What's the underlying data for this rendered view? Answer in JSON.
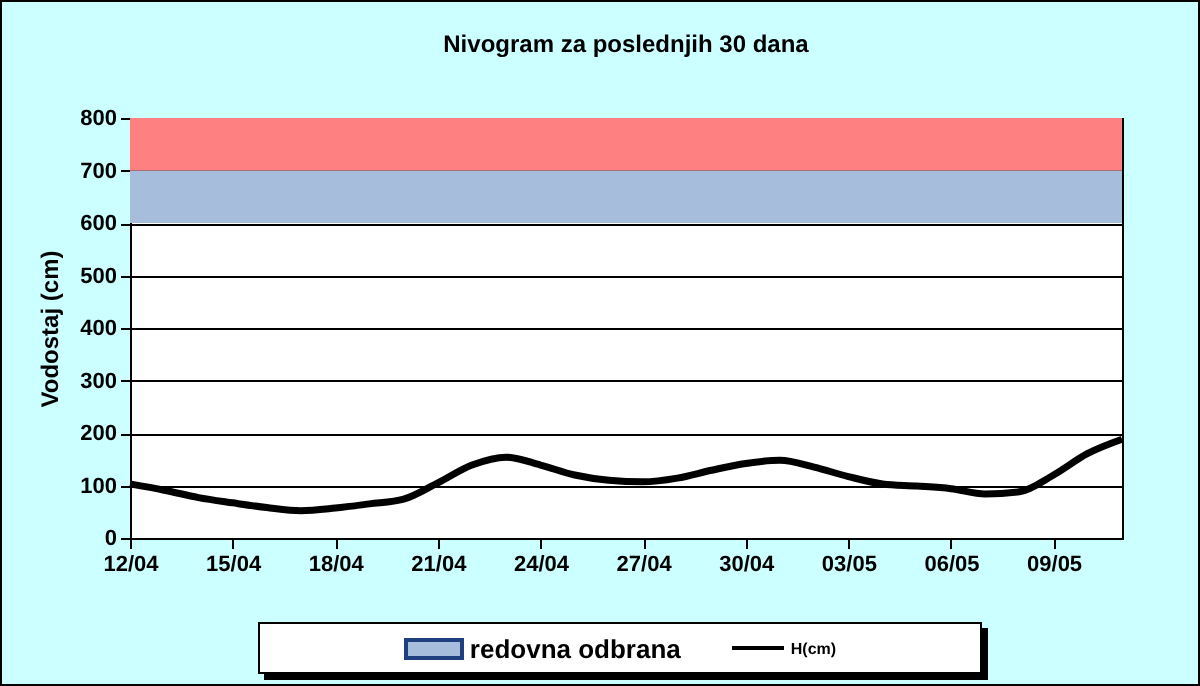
{
  "chart_data": {
    "type": "line",
    "title": "Nivogram za poslednjih 30 dana",
    "ylabel": "Vodostaj (cm)",
    "x": [
      "--04-12",
      "--04-13",
      "--04-14",
      "--04-15",
      "--04-16",
      "--04-17",
      "--04-18",
      "--04-19",
      "--04-20",
      "--04-21",
      "--04-22",
      "--04-23",
      "--04-24",
      "--04-25",
      "--04-26",
      "--04-27",
      "--04-28",
      "--04-29",
      "--04-30",
      "--05-01",
      "--05-02",
      "--05-03",
      "--05-04",
      "--05-05",
      "--05-06",
      "--05-07",
      "--05-08",
      "--05-09",
      "--05-10",
      "--05-11"
    ],
    "series": [
      {
        "name": "H(cm)",
        "color": "#000000",
        "values": [
          103,
          91,
          77,
          67,
          58,
          52,
          57,
          65,
          74,
          105,
          139,
          154,
          139,
          120,
          110,
          107,
          114,
          129,
          142,
          148,
          135,
          117,
          103,
          99,
          94,
          84,
          88,
          120,
          161,
          188
        ]
      }
    ],
    "xlim": [
      "--04-12",
      "--05-11"
    ],
    "xticks": [
      {
        "value": "--04-12",
        "label": "12/04"
      },
      {
        "value": "--04-15",
        "label": "15/04"
      },
      {
        "value": "--04-18",
        "label": "18/04"
      },
      {
        "value": "--04-21",
        "label": "21/04"
      },
      {
        "value": "--04-24",
        "label": "24/04"
      },
      {
        "value": "--04-27",
        "label": "27/04"
      },
      {
        "value": "--04-30",
        "label": "30/04"
      },
      {
        "value": "--05-03",
        "label": "03/05"
      },
      {
        "value": "--05-06",
        "label": "06/05"
      },
      {
        "value": "--05-09",
        "label": "09/05"
      }
    ],
    "ylim": [
      0,
      800
    ],
    "yticks": [
      0,
      100,
      200,
      300,
      400,
      500,
      600,
      700,
      800
    ],
    "grid": "y",
    "bands": [
      {
        "axis": "y",
        "from": 600,
        "to": 700,
        "label": "redovna odbrana",
        "color": "#a6bddb"
      },
      {
        "axis": "y",
        "from": 700,
        "to": 800,
        "color": "#ff8080"
      }
    ],
    "legend": "bottom",
    "marker": "none",
    "line_style": "solid"
  }
}
